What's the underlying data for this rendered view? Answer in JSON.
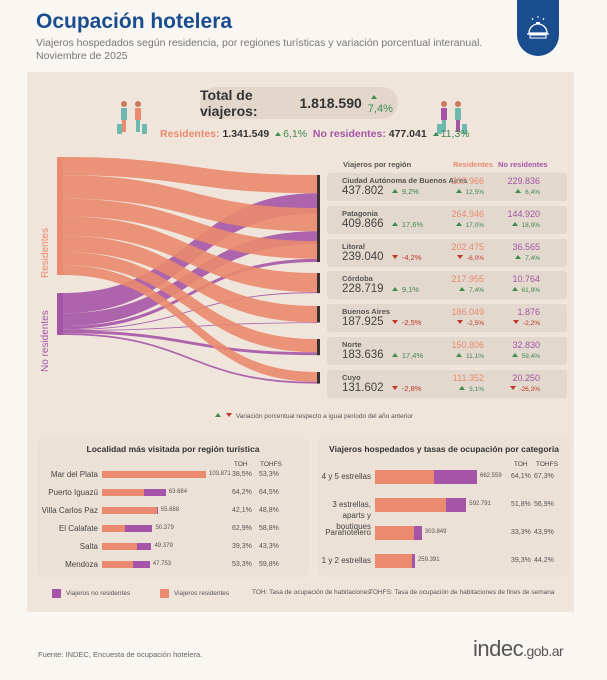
{
  "header": {
    "title": "Ocupación hotelera",
    "subtitle": "Viajeros hospedados según residencia, por regiones turísticas y variación porcentual interanual.",
    "period": "Noviembre de 2025",
    "badge_icon": "hotel-bell-icon"
  },
  "colors": {
    "residents": "#ea8a6e",
    "non_residents": "#a555a7",
    "up": "#3e8a4f",
    "down": "#c0392b",
    "brand": "#1a4d8f"
  },
  "totals": {
    "total_label": "Total de viajeros:",
    "total_value": "1.818.590",
    "total_var": "7,4%",
    "residents_label": "Residentes:",
    "residents_value": "1.341.549",
    "residents_var": "6,1%",
    "non_residents_label": "No residentes:",
    "non_residents_value": "477.041",
    "non_residents_var": "11,3%"
  },
  "sankey_labels": {
    "residents": "Residentes",
    "non_residents": "No residentes"
  },
  "regions_header": {
    "region": "Viajeros por región",
    "residents": "Residentes",
    "non_residents": "No residentes"
  },
  "note": "Variación porcentual respecto a igual período del año anterior",
  "chart_data": [
    {
      "type": "sankey",
      "title": "Viajeros por región",
      "sources": [
        "Residentes",
        "No residentes"
      ],
      "regions": [
        {
          "name": "Ciudad Autónoma de Buenos Aires",
          "total": 437802,
          "total_label": "437.802",
          "var": "9,2%",
          "dir": "up",
          "residents": 207966,
          "residents_label": "207.966",
          "res_var": "12,5%",
          "res_dir": "up",
          "non_residents": 229836,
          "non_residents_label": "229.836",
          "nres_var": "6,4%",
          "nres_dir": "up"
        },
        {
          "name": "Patagonia",
          "total": 409866,
          "total_label": "409.866",
          "var": "17,6%",
          "dir": "up",
          "residents": 264946,
          "residents_label": "264.946",
          "res_var": "17,0%",
          "res_dir": "up",
          "non_residents": 144920,
          "non_residents_label": "144.920",
          "nres_var": "18,9%",
          "nres_dir": "up"
        },
        {
          "name": "Litoral",
          "total": 239040,
          "total_label": "239.040",
          "var": "-4,2%",
          "dir": "down",
          "residents": 202475,
          "residents_label": "202.475",
          "res_var": "-6,0%",
          "res_dir": "down",
          "non_residents": 36565,
          "non_residents_label": "36.565",
          "nres_var": "7,4%",
          "nres_dir": "up"
        },
        {
          "name": "Córdoba",
          "total": 228719,
          "total_label": "228.719",
          "var": "9,1%",
          "dir": "up",
          "residents": 217955,
          "residents_label": "217.955",
          "res_var": "7,4%",
          "res_dir": "up",
          "non_residents": 10764,
          "non_residents_label": "10.764",
          "nres_var": "61,9%",
          "nres_dir": "up"
        },
        {
          "name": "Buenos Aires",
          "total": 187925,
          "total_label": "187.925",
          "var": "-2,5%",
          "dir": "down",
          "residents": 186049,
          "residents_label": "186.049",
          "res_var": "-2,5%",
          "res_dir": "down",
          "non_residents": 1876,
          "non_residents_label": "1.876",
          "nres_var": "-2,2%",
          "nres_dir": "down"
        },
        {
          "name": "Norte",
          "total": 183636,
          "total_label": "183.636",
          "var": "17,4%",
          "dir": "up",
          "residents": 150806,
          "residents_label": "150.806",
          "res_var": "11,1%",
          "res_dir": "up",
          "non_residents": 32830,
          "non_residents_label": "32.830",
          "nres_var": "59,4%",
          "nres_dir": "up"
        },
        {
          "name": "Cuyo",
          "total": 131602,
          "total_label": "131.602",
          "var": "-2,8%",
          "dir": "down",
          "residents": 111352,
          "residents_label": "111.352",
          "res_var": "3,1%",
          "res_dir": "up",
          "non_residents": 20250,
          "non_residents_label": "20.250",
          "nres_var": "-26,3%",
          "nres_dir": "down"
        }
      ]
    },
    {
      "type": "bar",
      "stacked": true,
      "title": "Localidad más visitada por región turística",
      "col_toh": "TOH",
      "col_tohfs": "TOHFS",
      "categories": [
        "Mar del Plata",
        "Puerto Iguazú",
        "Villa Carlos Paz",
        "El Calafate",
        "Salta",
        "Mendoza"
      ],
      "totals": [
        103871,
        63684,
        55688,
        50379,
        49379,
        47753
      ],
      "total_labels": [
        "103.871",
        "63.684",
        "55.688",
        "50.379",
        "49.379",
        "47.753"
      ],
      "resident_share": [
        1.0,
        0.66,
        0.98,
        0.45,
        0.71,
        0.64
      ],
      "toh": [
        "38,5%",
        "64,2%",
        "42,1%",
        "62,9%",
        "39,3%",
        "53,3%"
      ],
      "tohfs": [
        "53,3%",
        "64,5%",
        "48,8%",
        "58,8%",
        "43,3%",
        "59,8%"
      ]
    },
    {
      "type": "bar",
      "stacked": true,
      "title": "Viajeros hospedados y tasas de ocupación por categoría",
      "col_toh": "TOH",
      "col_tohfs": "TOHFS",
      "categories": [
        "4 y 5 estrellas",
        "3 estrellas, aparts y boutiques",
        "Parahotelero",
        "1 y 2 estrellas"
      ],
      "totals": [
        662559,
        592791,
        303849,
        259391
      ],
      "total_labels": [
        "662.559",
        "592.791",
        "303.849",
        "259.391"
      ],
      "resident_share": [
        0.58,
        0.78,
        0.84,
        0.93
      ],
      "toh": [
        "64,1%",
        "51,8%",
        "33,3%",
        "39,3%"
      ],
      "tohfs": [
        "67,3%",
        "56,9%",
        "43,9%",
        "44,2%"
      ]
    }
  ],
  "legend": {
    "non_residents": "Viajeros no residentes",
    "residents": "Viajeros residentes",
    "toh": "TOH: Tasa de ocupación de habitaciones",
    "tohfs": "TOHFS: Tasa de ocupación de habitaciones de fines de semana"
  },
  "footer": {
    "source": "Fuente: INDEC, Encuesta de ocupación hotelera.",
    "logo_main": "indec",
    "logo_suffix": ".gob.ar"
  }
}
